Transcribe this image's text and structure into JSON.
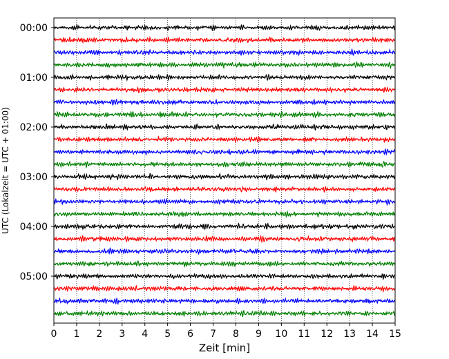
{
  "chart_data": {
    "type": "line",
    "title": "",
    "xlabel": "Zeit  [min]",
    "ylabel": "UTC (Lokalzeit = UTC + 01:00)",
    "xlim": [
      0,
      15
    ],
    "x_ticks": [
      0,
      1,
      2,
      3,
      4,
      5,
      6,
      7,
      8,
      9,
      10,
      11,
      12,
      13,
      14,
      15
    ],
    "y_tick_labels": [
      "00:00",
      "01:00",
      "02:00",
      "03:00",
      "04:00",
      "05:00"
    ],
    "grid": "vertical dotted at each minute",
    "trace_interval_minutes": 15,
    "trace_count": 24,
    "trace_colors": [
      "#000000",
      "#ff0000",
      "#0000ff",
      "#008000"
    ],
    "traces": [
      {
        "start": "00:00",
        "color": "#000000"
      },
      {
        "start": "00:15",
        "color": "#ff0000"
      },
      {
        "start": "00:30",
        "color": "#0000ff"
      },
      {
        "start": "00:45",
        "color": "#008000"
      },
      {
        "start": "01:00",
        "color": "#000000"
      },
      {
        "start": "01:15",
        "color": "#ff0000"
      },
      {
        "start": "01:30",
        "color": "#0000ff"
      },
      {
        "start": "01:45",
        "color": "#008000"
      },
      {
        "start": "02:00",
        "color": "#000000"
      },
      {
        "start": "02:15",
        "color": "#ff0000"
      },
      {
        "start": "02:30",
        "color": "#0000ff"
      },
      {
        "start": "02:45",
        "color": "#008000"
      },
      {
        "start": "03:00",
        "color": "#000000"
      },
      {
        "start": "03:15",
        "color": "#ff0000"
      },
      {
        "start": "03:30",
        "color": "#0000ff"
      },
      {
        "start": "03:45",
        "color": "#008000"
      },
      {
        "start": "04:00",
        "color": "#000000"
      },
      {
        "start": "04:15",
        "color": "#ff0000"
      },
      {
        "start": "04:30",
        "color": "#0000ff"
      },
      {
        "start": "04:45",
        "color": "#008000"
      },
      {
        "start": "05:00",
        "color": "#000000"
      },
      {
        "start": "05:15",
        "color": "#ff0000"
      },
      {
        "start": "05:30",
        "color": "#0000ff"
      },
      {
        "start": "05:45",
        "color": "#008000"
      }
    ]
  }
}
